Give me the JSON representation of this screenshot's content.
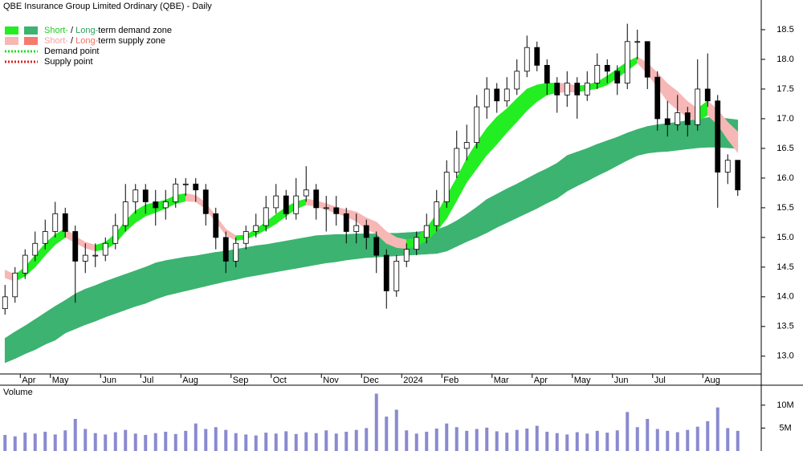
{
  "chart_data": {
    "type": "candlestick",
    "title": "QBE Insurance Group Limited Ordinary (QBE) - Daily",
    "legend": [
      {
        "parts": [
          "Short-",
          " / ",
          "Long-",
          "term demand zone"
        ],
        "colors": [
          "#22ee22",
          "#3cb371"
        ],
        "text_colors": [
          "#22cc22",
          "#000000",
          "#2e9e5e",
          "#000000"
        ]
      },
      {
        "parts": [
          "Short-",
          " / ",
          "Long-",
          "term supply zone"
        ],
        "colors": [
          "#f7b7b7",
          "#f47b6e"
        ],
        "text_colors": [
          "#f4a0a0",
          "#000000",
          "#f07060",
          "#000000"
        ]
      },
      {
        "parts": [
          "Demand point"
        ],
        "line_color": "#22dd22"
      },
      {
        "parts": [
          "Supply point"
        ],
        "line_color": "#dd2222"
      }
    ],
    "categories": [
      null,
      null,
      "Apr",
      null,
      null,
      "May",
      null,
      null,
      null,
      null,
      "Jun",
      null,
      null,
      null,
      "Jul",
      null,
      null,
      null,
      "Aug",
      null,
      null,
      null,
      null,
      "Sep",
      null,
      null,
      null,
      "Oct",
      null,
      null,
      null,
      null,
      "Nov",
      null,
      null,
      null,
      "Dec",
      null,
      null,
      null,
      "2024",
      null,
      null,
      null,
      "Feb",
      null,
      null,
      null,
      null,
      "Mar",
      null,
      null,
      null,
      "Apr",
      null,
      null,
      null,
      "May",
      null,
      null,
      null,
      "Jun",
      null,
      null,
      null,
      "Jul",
      null,
      null,
      null,
      null,
      "Aug",
      null,
      null,
      null
    ],
    "open": [
      13.8,
      14.0,
      14.4,
      14.7,
      14.9,
      15.1,
      15.4,
      15.1,
      14.6,
      14.7,
      14.7,
      14.9,
      15.2,
      15.6,
      15.8,
      15.6,
      15.5,
      15.6,
      15.9,
      15.9,
      15.8,
      15.4,
      15.0,
      14.6,
      14.9,
      15.1,
      15.2,
      15.5,
      15.7,
      15.4,
      15.7,
      15.8,
      15.5,
      15.5,
      15.4,
      15.1,
      15.2,
      15.0,
      14.7,
      14.1,
      14.6,
      14.8,
      15.0,
      15.2,
      15.6,
      16.1,
      16.5,
      16.6,
      17.2,
      17.5,
      17.3,
      17.5,
      17.8,
      18.2,
      17.9,
      17.6,
      17.4,
      17.6,
      17.4,
      17.6,
      17.9,
      17.8,
      17.6,
      18.3,
      18.3,
      17.7,
      17.0,
      16.9,
      17.1,
      16.9,
      17.5,
      17.3,
      16.1,
      16.3
    ],
    "high": [
      14.2,
      14.5,
      14.8,
      15.1,
      15.3,
      15.6,
      15.5,
      15.2,
      14.9,
      14.9,
      15.0,
      15.4,
      15.9,
      15.9,
      15.9,
      15.8,
      15.8,
      16.0,
      16.0,
      16.0,
      15.9,
      15.5,
      15.1,
      15.0,
      15.2,
      15.4,
      15.7,
      15.9,
      15.8,
      16.0,
      16.2,
      15.9,
      15.7,
      15.7,
      15.5,
      15.4,
      15.3,
      15.1,
      14.8,
      14.7,
      14.9,
      15.1,
      15.4,
      15.8,
      16.3,
      16.8,
      16.9,
      17.4,
      17.7,
      17.6,
      17.7,
      18.0,
      18.4,
      18.3,
      18.0,
      17.7,
      17.8,
      17.7,
      17.8,
      18.1,
      18.0,
      17.9,
      18.6,
      18.5,
      18.3,
      17.8,
      17.3,
      17.4,
      17.2,
      18.0,
      18.1,
      17.4,
      16.4,
      16.3
    ],
    "low": [
      13.7,
      13.9,
      14.3,
      14.6,
      14.8,
      15.0,
      15.0,
      13.9,
      14.4,
      14.5,
      14.6,
      14.8,
      15.1,
      15.4,
      15.4,
      15.2,
      15.3,
      15.5,
      15.7,
      15.6,
      15.2,
      14.8,
      14.4,
      14.5,
      14.8,
      15.0,
      15.1,
      15.4,
      15.3,
      15.3,
      15.6,
      15.3,
      15.1,
      15.2,
      14.9,
      14.9,
      14.8,
      14.4,
      13.8,
      14.0,
      14.5,
      14.7,
      14.9,
      15.1,
      15.5,
      16.0,
      16.3,
      16.5,
      17.0,
      17.1,
      17.2,
      17.4,
      17.7,
      17.8,
      17.4,
      17.1,
      17.2,
      17.0,
      17.3,
      17.5,
      17.6,
      17.4,
      17.5,
      18.0,
      17.5,
      16.8,
      16.7,
      16.8,
      16.7,
      16.8,
      17.2,
      15.5,
      15.9,
      15.7
    ],
    "close": [
      14.0,
      14.4,
      14.7,
      14.9,
      15.1,
      15.4,
      15.1,
      14.6,
      14.7,
      14.7,
      14.9,
      15.2,
      15.6,
      15.8,
      15.6,
      15.5,
      15.6,
      15.9,
      15.9,
      15.8,
      15.4,
      15.0,
      14.6,
      14.9,
      15.1,
      15.2,
      15.5,
      15.7,
      15.4,
      15.7,
      15.8,
      15.5,
      15.5,
      15.4,
      15.1,
      15.2,
      15.0,
      14.7,
      14.1,
      14.6,
      14.8,
      15.0,
      15.2,
      15.6,
      16.1,
      16.5,
      16.6,
      17.2,
      17.5,
      17.3,
      17.5,
      17.8,
      18.2,
      17.9,
      17.6,
      17.4,
      17.6,
      17.4,
      17.6,
      17.9,
      17.8,
      17.6,
      18.3,
      18.3,
      17.7,
      17.0,
      16.9,
      17.1,
      16.9,
      17.5,
      17.3,
      16.1,
      16.3,
      15.8
    ],
    "up_color": "#ffffff",
    "down_color": "#000000",
    "zones": {
      "long": {
        "upper": [
          13.3,
          13.41,
          13.51,
          13.62,
          13.73,
          13.84,
          13.94,
          14.05,
          14.13,
          14.19,
          14.26,
          14.32,
          14.38,
          14.44,
          14.5,
          14.57,
          14.61,
          14.64,
          14.67,
          14.69,
          14.72,
          14.75,
          14.77,
          14.8,
          14.83,
          14.86,
          14.88,
          14.91,
          14.94,
          14.97,
          15.0,
          15.03,
          15.04,
          15.05,
          15.05,
          15.06,
          15.06,
          15.06,
          15.07,
          15.07,
          15.08,
          15.09,
          15.11,
          15.13,
          15.19,
          15.28,
          15.39,
          15.51,
          15.64,
          15.73,
          15.82,
          15.9,
          15.99,
          16.08,
          16.16,
          16.25,
          16.38,
          16.44,
          16.5,
          16.57,
          16.63,
          16.69,
          16.76,
          16.82,
          16.87,
          16.9,
          16.92,
          16.94,
          16.97,
          16.99,
          17.02,
          17.02,
          17.0,
          16.98
        ],
        "lower": [
          12.89,
          12.96,
          13.04,
          13.11,
          13.2,
          13.27,
          13.39,
          13.46,
          13.53,
          13.59,
          13.66,
          13.72,
          13.78,
          13.84,
          13.89,
          13.96,
          14.02,
          14.06,
          14.1,
          14.14,
          14.18,
          14.22,
          14.26,
          14.29,
          14.33,
          14.36,
          14.39,
          14.42,
          14.45,
          14.48,
          14.51,
          14.54,
          14.57,
          14.59,
          14.62,
          14.64,
          14.66,
          14.67,
          14.68,
          14.69,
          14.7,
          14.71,
          14.72,
          14.73,
          14.77,
          14.85,
          14.93,
          15.0,
          15.08,
          15.17,
          15.25,
          15.33,
          15.41,
          15.49,
          15.58,
          15.66,
          15.78,
          15.87,
          15.95,
          16.04,
          16.12,
          16.21,
          16.3,
          16.38,
          16.42,
          16.44,
          16.45,
          16.47,
          16.49,
          16.51,
          16.52,
          16.52,
          16.51,
          16.5
        ],
        "demand_color": "#3cb371",
        "supply_color": "#f47b6e"
      },
      "short": {
        "upper": [
          14.45,
          14.37,
          14.5,
          14.7,
          14.9,
          15.05,
          15.15,
          15.02,
          14.92,
          14.87,
          14.92,
          15.06,
          15.28,
          15.45,
          15.55,
          15.59,
          15.63,
          15.71,
          15.74,
          15.71,
          15.58,
          15.36,
          15.14,
          15.03,
          15.04,
          15.14,
          15.26,
          15.39,
          15.51,
          15.6,
          15.65,
          15.62,
          15.57,
          15.51,
          15.47,
          15.43,
          15.33,
          15.26,
          15.1,
          15.0,
          14.96,
          15.0,
          15.16,
          15.39,
          15.7,
          16.0,
          16.33,
          16.6,
          16.84,
          17.03,
          17.17,
          17.34,
          17.5,
          17.57,
          17.6,
          17.6,
          17.59,
          17.55,
          17.57,
          17.62,
          17.72,
          17.84,
          17.96,
          18.04,
          17.94,
          17.77,
          17.59,
          17.46,
          17.29,
          17.17,
          17.3,
          17.15,
          16.94,
          16.78
        ],
        "lower": [
          14.32,
          14.26,
          14.35,
          14.5,
          14.7,
          14.88,
          15.0,
          14.91,
          14.82,
          14.77,
          14.8,
          14.9,
          15.1,
          15.25,
          15.36,
          15.42,
          15.49,
          15.57,
          15.61,
          15.6,
          15.48,
          15.26,
          15.04,
          14.95,
          14.97,
          15.04,
          15.13,
          15.23,
          15.36,
          15.48,
          15.55,
          15.52,
          15.47,
          15.41,
          15.35,
          15.27,
          15.14,
          15.06,
          14.9,
          14.83,
          14.81,
          14.85,
          14.95,
          15.1,
          15.32,
          15.62,
          15.93,
          16.16,
          16.39,
          16.57,
          16.77,
          16.95,
          17.14,
          17.29,
          17.4,
          17.44,
          17.45,
          17.45,
          17.48,
          17.51,
          17.57,
          17.69,
          17.81,
          17.94,
          17.76,
          17.53,
          17.29,
          17.15,
          17.02,
          16.96,
          17.06,
          16.9,
          16.65,
          16.43
        ],
        "demand_color": "#22ee22",
        "supply_color": "#f7b7b7"
      }
    },
    "ylim": [
      12.7,
      19.0
    ],
    "yticks": [
      {
        "value": 13,
        "label": "13.0"
      },
      13.5,
      {
        "value": 14,
        "label": "14.0"
      },
      14.5,
      {
        "value": 15,
        "label": "15.0"
      },
      15.5,
      {
        "value": 16,
        "label": "16.0"
      },
      16.5,
      {
        "value": 17,
        "label": "17.0"
      },
      17.5,
      {
        "value": 18,
        "label": "18.0"
      },
      18.5
    ],
    "volume": {
      "label": "Volume",
      "color": "#8a8ad0",
      "values": [
        3500000,
        3200000,
        4000000,
        3800000,
        4200000,
        3600000,
        4500000,
        7000000,
        4800000,
        3900000,
        3600000,
        4100000,
        4600000,
        3800000,
        3500000,
        3900000,
        4200000,
        3700000,
        4400000,
        6000000,
        4800000,
        5200000,
        4600000,
        3900000,
        3600000,
        3400000,
        4000000,
        3800000,
        4300000,
        3700000,
        4100000,
        3900000,
        4500000,
        3800000,
        4200000,
        4600000,
        5000000,
        12500000,
        7500000,
        9000000,
        4500000,
        3800000,
        4200000,
        4900000,
        6000000,
        5200000,
        4400000,
        4800000,
        5100000,
        4300000,
        4000000,
        4600000,
        4900000,
        5500000,
        4200000,
        3900000,
        3600000,
        4100000,
        3800000,
        4400000,
        4000000,
        4500000,
        8500000,
        5200000,
        7000000,
        4800000,
        4400000,
        4100000,
        4600000,
        5300000,
        6500000,
        9500000,
        5000000,
        4400000
      ],
      "ylim": [
        0,
        14000000
      ],
      "yticks": [
        {
          "value": 10000000,
          "label": "10M"
        },
        {
          "value": 5000000,
          "label": "5M"
        }
      ]
    }
  }
}
